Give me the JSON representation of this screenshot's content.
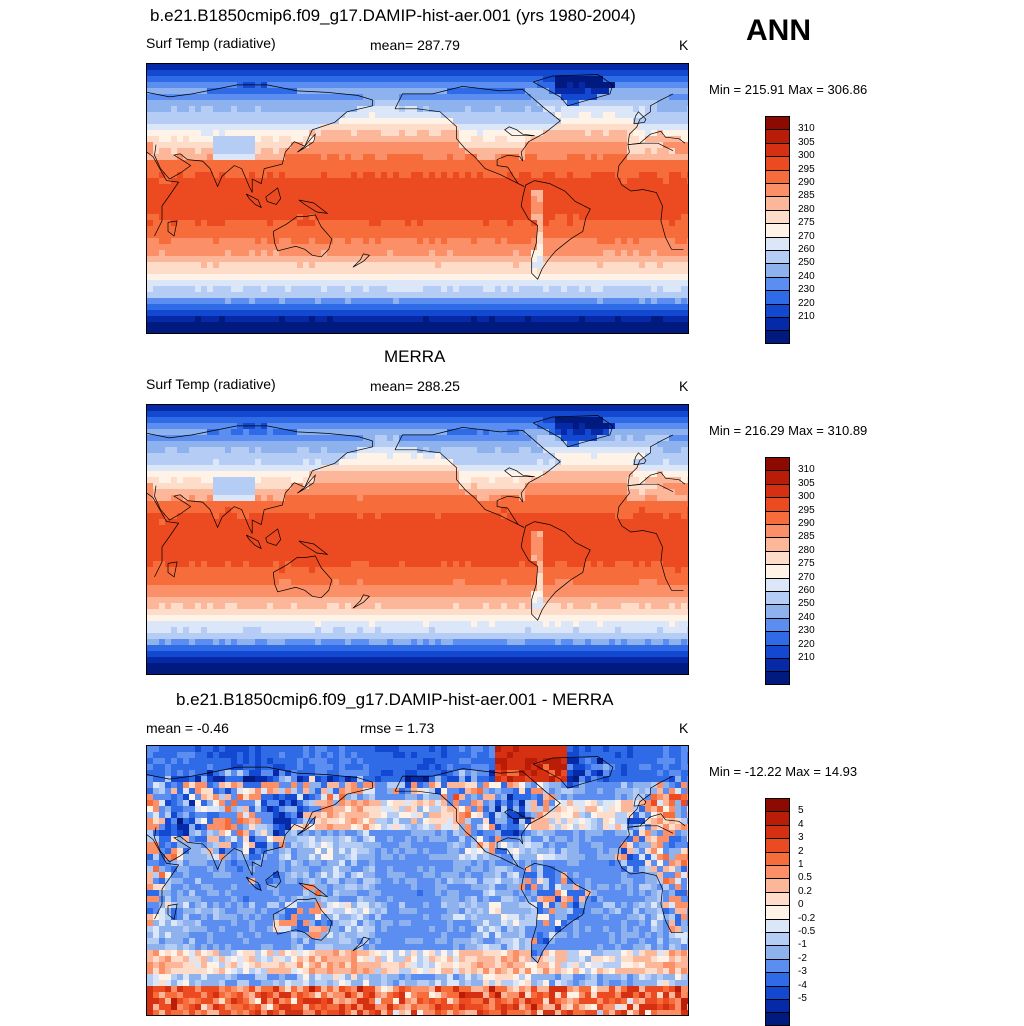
{
  "season": "ANN",
  "panels": [
    {
      "title": "b.e21.B1850cmip6.f09_g17.DAMIP-hist-aer.001 (yrs 1980-2004)",
      "left_label": "Surf Temp (radiative)",
      "center_label": "mean= 287.79",
      "units": "K",
      "minmax": "Min = 215.91 Max = 306.86",
      "colorbar": {
        "labels": [
          "310",
          "305",
          "300",
          "295",
          "290",
          "285",
          "280",
          "275",
          "270",
          "260",
          "250",
          "240",
          "230",
          "220",
          "210"
        ],
        "colors": [
          "#8c0a00",
          "#b91d07",
          "#d63013",
          "#ec4a20",
          "#f66c3a",
          "#fb9068",
          "#fcb79b",
          "#fddcc9",
          "#fff2e6",
          "#dbe7f8",
          "#b5cdf4",
          "#8db2ee",
          "#5b8ef0",
          "#2f6be6",
          "#1348d0",
          "#0629a8",
          "#001a80"
        ]
      },
      "field": "model"
    },
    {
      "title": "MERRA",
      "left_label": "Surf Temp (radiative)",
      "center_label": "mean= 288.25",
      "units": "K",
      "minmax": "Min = 216.29 Max = 310.89",
      "colorbar": {
        "labels": [
          "310",
          "305",
          "300",
          "295",
          "290",
          "285",
          "280",
          "275",
          "270",
          "260",
          "250",
          "240",
          "230",
          "220",
          "210"
        ],
        "colors": [
          "#8c0a00",
          "#b91d07",
          "#d63013",
          "#ec4a20",
          "#f66c3a",
          "#fb9068",
          "#fcb79b",
          "#fddcc9",
          "#fff2e6",
          "#dbe7f8",
          "#b5cdf4",
          "#8db2ee",
          "#5b8ef0",
          "#2f6be6",
          "#1348d0",
          "#0629a8",
          "#001a80"
        ]
      },
      "field": "obs"
    },
    {
      "title": "b.e21.B1850cmip6.f09_g17.DAMIP-hist-aer.001 - MERRA",
      "left_label": "mean =  -0.46",
      "center_label": "rmse =   1.73",
      "units": "K",
      "minmax": "Min = -12.22 Max =  14.93",
      "colorbar": {
        "labels": [
          "5",
          "4",
          "3",
          "2",
          "1",
          "0.5",
          "0.2",
          "0",
          "-0.2",
          "-0.5",
          "-1",
          "-2",
          "-3",
          "-4",
          "-5"
        ],
        "colors": [
          "#8c0a00",
          "#b91d07",
          "#d63013",
          "#ec4a20",
          "#f66c3a",
          "#fb9068",
          "#fcb79b",
          "#fddcc9",
          "#fff2e6",
          "#dbe7f8",
          "#b5cdf4",
          "#8db2ee",
          "#5b8ef0",
          "#2f6be6",
          "#1348d0",
          "#0629a8",
          "#001a80"
        ]
      },
      "field": "diff"
    }
  ]
}
